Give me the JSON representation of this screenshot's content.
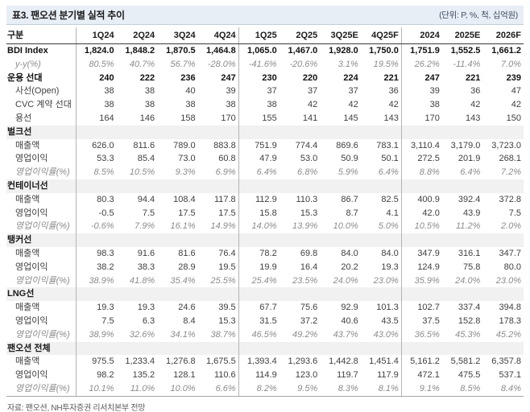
{
  "title": "표3. 팬오션 분기별 실적 추이",
  "unit_note": "(단위: P, %, 척, 십억원)",
  "source": "자료: 팬오션, NH투자증권 리서치본부 전망",
  "table": {
    "columns": [
      "구분",
      "1Q24",
      "2Q24",
      "3Q24",
      "4Q24",
      "1Q25",
      "2Q25",
      "3Q25E",
      "4Q25F",
      "2024",
      "2025E",
      "2026F"
    ],
    "rows": [
      {
        "label": "BDI Index",
        "style": "bold",
        "values": [
          "1,824.0",
          "1,848.2",
          "1,870.5",
          "1,464.8",
          "1,065.0",
          "1,467.0",
          "1,928.0",
          "1,750.0",
          "1,751.9",
          "1,552.5",
          "1,661.2"
        ]
      },
      {
        "label": "y-y(%)",
        "style": "italic",
        "values": [
          "80.5%",
          "40.7%",
          "56.7%",
          "-28.0%",
          "-41.6%",
          "-20.6%",
          "3.1%",
          "19.5%",
          "26.2%",
          "-11.4%",
          "7.0%"
        ]
      },
      {
        "label": "운용 선대",
        "style": "bold",
        "values": [
          "240",
          "222",
          "236",
          "247",
          "230",
          "220",
          "224",
          "221",
          "247",
          "221",
          "239"
        ]
      },
      {
        "label": "사선(Open)",
        "style": "sub",
        "values": [
          "38",
          "38",
          "40",
          "39",
          "37",
          "37",
          "37",
          "36",
          "39",
          "36",
          "47"
        ]
      },
      {
        "label": "CVC 계약 선대",
        "style": "sub",
        "values": [
          "38",
          "38",
          "38",
          "38",
          "38",
          "42",
          "42",
          "42",
          "38",
          "42",
          "42"
        ]
      },
      {
        "label": "용선",
        "style": "sub",
        "values": [
          "164",
          "146",
          "158",
          "170",
          "155",
          "141",
          "145",
          "143",
          "170",
          "143",
          "150"
        ]
      },
      {
        "label": "벌크선",
        "style": "section",
        "values": []
      },
      {
        "label": "매출액",
        "style": "sub",
        "values": [
          "626.0",
          "811.6",
          "789.0",
          "883.8",
          "751.9",
          "774.4",
          "869.6",
          "783.1",
          "3,110.4",
          "3,179.0",
          "3,723.0"
        ]
      },
      {
        "label": "영업이익",
        "style": "sub",
        "values": [
          "53.3",
          "85.4",
          "73.0",
          "60.8",
          "47.9",
          "53.0",
          "50.9",
          "50.1",
          "272.5",
          "201.9",
          "268.1"
        ]
      },
      {
        "label": "영업이익률(%)",
        "style": "italic",
        "values": [
          "8.5%",
          "10.5%",
          "9.3%",
          "6.9%",
          "6.4%",
          "6.8%",
          "5.9%",
          "6.4%",
          "8.8%",
          "6.4%",
          "7.2%"
        ]
      },
      {
        "label": "컨테이너선",
        "style": "section",
        "values": []
      },
      {
        "label": "매출액",
        "style": "sub",
        "values": [
          "80.3",
          "94.4",
          "108.4",
          "117.8",
          "112.9",
          "110.3",
          "86.7",
          "82.5",
          "400.9",
          "392.4",
          "372.8"
        ]
      },
      {
        "label": "영업이익",
        "style": "sub",
        "values": [
          "-0.5",
          "7.5",
          "17.5",
          "17.5",
          "15.8",
          "15.3",
          "8.7",
          "4.1",
          "42.0",
          "43.9",
          "7.5"
        ]
      },
      {
        "label": "영업이익률(%)",
        "style": "italic",
        "values": [
          "-0.6%",
          "7.9%",
          "16.1%",
          "14.9%",
          "14.0%",
          "13.9%",
          "10.0%",
          "5.0%",
          "10.5%",
          "11.2%",
          "2.0%"
        ]
      },
      {
        "label": "탱커선",
        "style": "section",
        "values": []
      },
      {
        "label": "매출액",
        "style": "sub",
        "values": [
          "98.3",
          "91.6",
          "81.6",
          "76.4",
          "78.2",
          "69.8",
          "84.0",
          "84.0",
          "347.9",
          "316.1",
          "347.7"
        ]
      },
      {
        "label": "영업이익",
        "style": "sub",
        "values": [
          "38.2",
          "38.3",
          "28.9",
          "19.5",
          "19.9",
          "16.4",
          "20.2",
          "19.3",
          "124.9",
          "75.8",
          "80.0"
        ]
      },
      {
        "label": "영업이익률(%)",
        "style": "italic",
        "values": [
          "38.9%",
          "41.8%",
          "35.4%",
          "25.5%",
          "25.4%",
          "23.5%",
          "24.0%",
          "23.0%",
          "35.9%",
          "24.0%",
          "23.0%"
        ]
      },
      {
        "label": "LNG선",
        "style": "section",
        "values": []
      },
      {
        "label": "매출액",
        "style": "sub",
        "values": [
          "19.3",
          "19.3",
          "24.6",
          "39.5",
          "67.7",
          "75.6",
          "92.9",
          "101.3",
          "102.7",
          "337.4",
          "394.8"
        ]
      },
      {
        "label": "영업이익",
        "style": "sub",
        "values": [
          "7.5",
          "6.3",
          "8.4",
          "15.3",
          "31.5",
          "37.2",
          "40.6",
          "43.5",
          "37.5",
          "152.8",
          "178.3"
        ]
      },
      {
        "label": "영업이익률(%)",
        "style": "italic",
        "values": [
          "38.9%",
          "32.6%",
          "34.1%",
          "38.7%",
          "46.5%",
          "49.2%",
          "43.7%",
          "43.0%",
          "36.5%",
          "45.3%",
          "45.2%"
        ]
      },
      {
        "label": "팬오션 전체",
        "style": "section",
        "values": []
      },
      {
        "label": "매출액",
        "style": "sub",
        "values": [
          "975.5",
          "1,233.4",
          "1,276.8",
          "1,675.5",
          "1,393.4",
          "1,293.6",
          "1,442.8",
          "1,451.4",
          "5,161.2",
          "5,581.2",
          "6,357.8"
        ]
      },
      {
        "label": "영업이익",
        "style": "sub",
        "values": [
          "98.2",
          "135.2",
          "128.1",
          "110.6",
          "114.9",
          "123.0",
          "119.7",
          "117.9",
          "472.1",
          "475.5",
          "537.1"
        ]
      },
      {
        "label": "영업이익률(%)",
        "style": "italic",
        "values": [
          "10.1%",
          "11.0%",
          "10.0%",
          "6.6%",
          "8.2%",
          "9.5%",
          "8.3%",
          "8.1%",
          "9.1%",
          "8.5%",
          "8.4%"
        ]
      }
    ]
  }
}
